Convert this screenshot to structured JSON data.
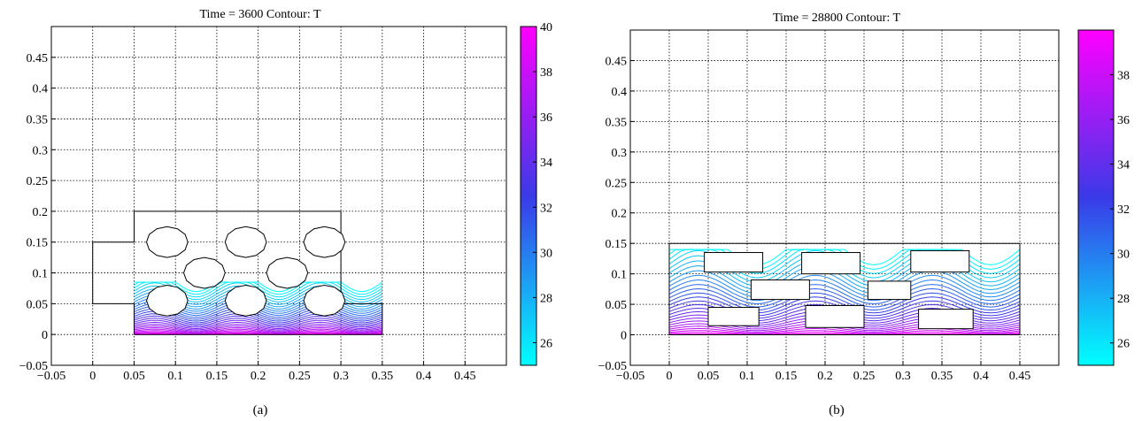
{
  "chart_data": [
    {
      "type": "contour",
      "title": "Time = 3600  Contour: T",
      "caption": "(a)",
      "xlim": [
        -0.05,
        0.5
      ],
      "ylim": [
        -0.05,
        0.5
      ],
      "x_ticks": [
        "−0.05",
        "0",
        "0.05",
        "0.1",
        "0.15",
        "0.2",
        "0.25",
        "0.3",
        "0.35",
        "0.4",
        "0.45"
      ],
      "x_tick_values": [
        -0.05,
        0,
        0.05,
        0.1,
        0.15,
        0.2,
        0.25,
        0.3,
        0.35,
        0.4,
        0.45
      ],
      "y_ticks": [
        "−0.05",
        "0",
        "0.05",
        "0.1",
        "0.15",
        "0.2",
        "0.25",
        "0.3",
        "0.35",
        "0.4",
        "0.45"
      ],
      "y_tick_values": [
        -0.05,
        0,
        0.05,
        0.1,
        0.15,
        0.2,
        0.25,
        0.3,
        0.35,
        0.4,
        0.45
      ],
      "grid": true,
      "colorbar": {
        "range": [
          25,
          40
        ],
        "ticks": [
          "26",
          "28",
          "30",
          "32",
          "34",
          "36",
          "38",
          "40"
        ],
        "tick_values": [
          26,
          28,
          30,
          32,
          34,
          36,
          38,
          40
        ],
        "color_low": "#00ffff",
        "color_high": "#ff00ff"
      },
      "domain_outline": [
        [
          0.05,
          0
        ],
        [
          0.35,
          0
        ],
        [
          0.35,
          0.05
        ],
        [
          0.3,
          0.05
        ],
        [
          0.3,
          0.2
        ],
        [
          0.05,
          0.2
        ],
        [
          0.05,
          0.15
        ],
        [
          0,
          0.15
        ],
        [
          0,
          0.05
        ],
        [
          0.05,
          0.05
        ],
        [
          0.05,
          0
        ]
      ],
      "obstacles": [
        {
          "shape": "circle",
          "cx": 0.09,
          "cy": 0.15,
          "r": 0.025
        },
        {
          "shape": "circle",
          "cx": 0.185,
          "cy": 0.15,
          "r": 0.025
        },
        {
          "shape": "circle",
          "cx": 0.28,
          "cy": 0.15,
          "r": 0.025
        },
        {
          "shape": "circle",
          "cx": 0.135,
          "cy": 0.1,
          "r": 0.025
        },
        {
          "shape": "circle",
          "cx": 0.235,
          "cy": 0.1,
          "r": 0.025
        },
        {
          "shape": "circle",
          "cx": 0.09,
          "cy": 0.055,
          "r": 0.025
        },
        {
          "shape": "circle",
          "cx": 0.185,
          "cy": 0.055,
          "r": 0.025
        },
        {
          "shape": "circle",
          "cx": 0.28,
          "cy": 0.055,
          "r": 0.025
        }
      ],
      "contour_region": {
        "x0": 0.05,
        "x1": 0.35,
        "y0": 0,
        "y1": 0.085
      }
    },
    {
      "type": "contour",
      "title": "Time = 28800  Contour: T",
      "caption": "(b)",
      "xlim": [
        -0.05,
        0.5
      ],
      "ylim": [
        -0.05,
        0.5
      ],
      "x_ticks": [
        "−0.05",
        "0",
        "0.05",
        "0.1",
        "0.15",
        "0.2",
        "0.25",
        "0.3",
        "0.35",
        "0.4",
        "0.45"
      ],
      "x_tick_values": [
        -0.05,
        0,
        0.05,
        0.1,
        0.15,
        0.2,
        0.25,
        0.3,
        0.35,
        0.4,
        0.45
      ],
      "y_ticks": [
        "−0.05",
        "0",
        "0.05",
        "0.1",
        "0.15",
        "0.2",
        "0.25",
        "0.3",
        "0.35",
        "0.4",
        "0.45"
      ],
      "y_tick_values": [
        -0.05,
        0,
        0.05,
        0.1,
        0.15,
        0.2,
        0.25,
        0.3,
        0.35,
        0.4,
        0.45
      ],
      "grid": true,
      "colorbar": {
        "range": [
          25,
          40
        ],
        "ticks": [
          "26",
          "28",
          "30",
          "32",
          "34",
          "36",
          "38"
        ],
        "tick_values": [
          26,
          28,
          30,
          32,
          34,
          36,
          38
        ],
        "color_low": "#00ffff",
        "color_high": "#ff00ff"
      },
      "domain_outline": [
        [
          0,
          0
        ],
        [
          0.45,
          0
        ],
        [
          0.45,
          0.15
        ],
        [
          0,
          0.15
        ],
        [
          0,
          0
        ]
      ],
      "obstacles": [
        {
          "shape": "rect",
          "x0": 0.045,
          "y0": 0.103,
          "x1": 0.12,
          "y1": 0.135
        },
        {
          "shape": "rect",
          "x0": 0.17,
          "y0": 0.1,
          "x1": 0.245,
          "y1": 0.135
        },
        {
          "shape": "rect",
          "x0": 0.31,
          "y0": 0.103,
          "x1": 0.385,
          "y1": 0.138
        },
        {
          "shape": "rect",
          "x0": 0.105,
          "y0": 0.058,
          "x1": 0.18,
          "y1": 0.09
        },
        {
          "shape": "rect",
          "x0": 0.255,
          "y0": 0.058,
          "x1": 0.31,
          "y1": 0.088
        },
        {
          "shape": "rect",
          "x0": 0.05,
          "y0": 0.015,
          "x1": 0.115,
          "y1": 0.045
        },
        {
          "shape": "rect",
          "x0": 0.175,
          "y0": 0.012,
          "x1": 0.25,
          "y1": 0.048
        },
        {
          "shape": "rect",
          "x0": 0.32,
          "y0": 0.01,
          "x1": 0.39,
          "y1": 0.042
        }
      ],
      "contour_region": {
        "x0": 0,
        "x1": 0.45,
        "y0": 0,
        "y1": 0.14
      }
    }
  ]
}
